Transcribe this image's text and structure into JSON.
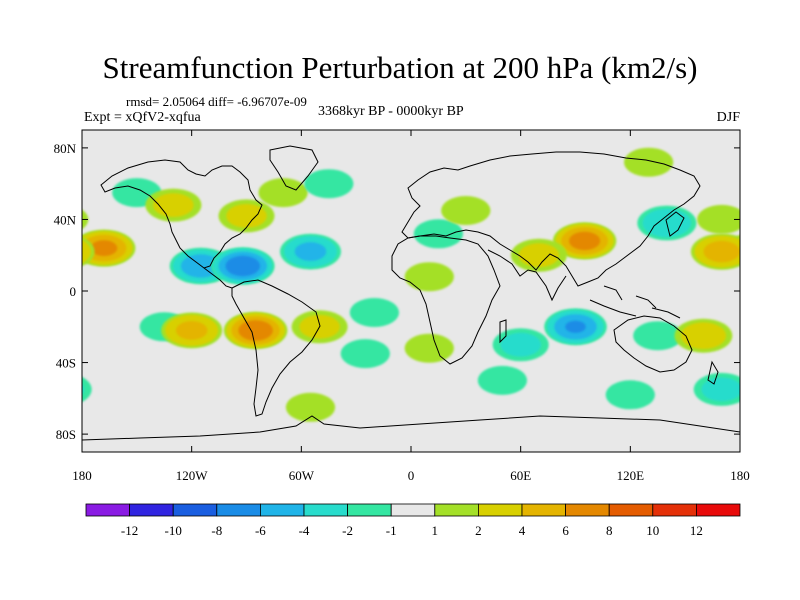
{
  "title": "Streamfunction Perturbation at 200 hPa (km2/s)",
  "stats": "rmsd= 2.05064 diff= -6.96707e-09",
  "experiment": "Expt = xQfV2-xqfua",
  "period": "3368kyr BP - 0000kyr BP",
  "season": "DJF",
  "colors": {
    "background": "#e8e8e8",
    "coast": "#000000"
  },
  "chart_data": {
    "type": "heatmap",
    "variable": "streamfunction perturbation",
    "level": "200 hPa",
    "units": "km2/s",
    "x_ticks": [
      "180",
      "120W",
      "60W",
      "0",
      "60E",
      "120E",
      "180"
    ],
    "x_tick_values": [
      -180,
      -120,
      -60,
      0,
      60,
      120,
      180
    ],
    "y_ticks": [
      "80N",
      "40N",
      "0",
      "40S",
      "80S"
    ],
    "y_tick_values": [
      80,
      40,
      0,
      -40,
      -80
    ],
    "lon_range": [
      -180,
      180
    ],
    "lat_range": [
      -90,
      90
    ],
    "colorbar_labels": [
      "-12",
      "-10",
      "-8",
      "-6",
      "-4",
      "-2",
      "-1",
      "1",
      "2",
      "4",
      "6",
      "8",
      "10",
      "12"
    ],
    "colorbar_colors": [
      "#8a1be3",
      "#3024e0",
      "#1a5ee0",
      "#1a8ce6",
      "#20b4e8",
      "#28dccc",
      "#34e6a2",
      "#e8e8e8",
      "#a4e028",
      "#d8d000",
      "#e4b400",
      "#e48800",
      "#e45c00",
      "#e43008",
      "#e80a0a"
    ],
    "features": [
      {
        "lon": -168,
        "lat": 24,
        "value": 6.5
      },
      {
        "lon": -150,
        "lat": 55,
        "value": -1.5
      },
      {
        "lon": -135,
        "lat": -20,
        "value": -1.5
      },
      {
        "lon": -130,
        "lat": 48,
        "value": 2.5
      },
      {
        "lon": -115,
        "lat": 14,
        "value": -5.5
      },
      {
        "lon": -92,
        "lat": 14,
        "value": -7.5
      },
      {
        "lon": -90,
        "lat": 42,
        "value": 2.5
      },
      {
        "lon": -70,
        "lat": 55,
        "value": 1.5
      },
      {
        "lon": -55,
        "lat": 22,
        "value": -4.5
      },
      {
        "lon": -45,
        "lat": 60,
        "value": -1.5
      },
      {
        "lon": -85,
        "lat": -22,
        "value": 7.5
      },
      {
        "lon": -120,
        "lat": -22,
        "value": 4.5
      },
      {
        "lon": -50,
        "lat": -20,
        "value": 2.5
      },
      {
        "lon": -55,
        "lat": -65,
        "value": 1.5
      },
      {
        "lon": -20,
        "lat": -12,
        "value": -1.5
      },
      {
        "lon": 10,
        "lat": 8,
        "value": 1.5
      },
      {
        "lon": 15,
        "lat": 32,
        "value": -1.5
      },
      {
        "lon": 30,
        "lat": 45,
        "value": 1.5
      },
      {
        "lon": 10,
        "lat": -32,
        "value": 1.5
      },
      {
        "lon": -25,
        "lat": -35,
        "value": -1.5
      },
      {
        "lon": 95,
        "lat": 28,
        "value": 7
      },
      {
        "lon": 70,
        "lat": 20,
        "value": 2.5
      },
      {
        "lon": 90,
        "lat": -20,
        "value": -6
      },
      {
        "lon": 60,
        "lat": -30,
        "value": -2.5
      },
      {
        "lon": 140,
        "lat": 38,
        "value": -3.5
      },
      {
        "lon": 170,
        "lat": 22,
        "value": 5
      },
      {
        "lon": 130,
        "lat": 72,
        "value": 1.5
      },
      {
        "lon": 135,
        "lat": -25,
        "value": -1.5
      },
      {
        "lon": 160,
        "lat": -25,
        "value": 3
      },
      {
        "lon": 120,
        "lat": -58,
        "value": -1.5
      },
      {
        "lon": 50,
        "lat": -50,
        "value": -1.5
      },
      {
        "lon": 170,
        "lat": -55,
        "value": -2.5
      },
      {
        "lon": 170,
        "lat": 40,
        "value": 1.5
      }
    ]
  }
}
